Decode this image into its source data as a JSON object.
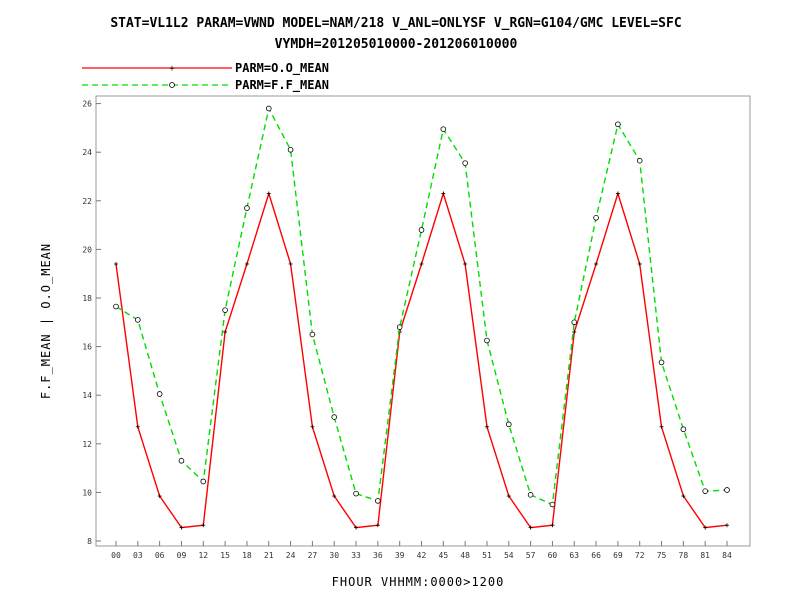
{
  "chart_data": {
    "type": "line",
    "title": "STAT=VL1L2 PARAM=VWND MODEL=NAM/218 V_ANL=ONLYSF V_RGN=G104/GMC LEVEL=SFC",
    "subtitle": "VYMDH=201205010000-201206010000",
    "xlabel": "FHOUR VHHMM:0000>1200",
    "ylabel": "F.F_MEAN | O.O_MEAN",
    "x": [
      "00",
      "03",
      "06",
      "09",
      "12",
      "15",
      "18",
      "21",
      "24",
      "27",
      "30",
      "33",
      "36",
      "39",
      "42",
      "45",
      "48",
      "51",
      "54",
      "57",
      "60",
      "63",
      "66",
      "69",
      "72",
      "75",
      "78",
      "81",
      "84"
    ],
    "ylim": [
      9,
      26.5
    ],
    "yticks": [
      8,
      10,
      12,
      14,
      16,
      18,
      20,
      22,
      24,
      26
    ],
    "ytick_labels": [
      "8",
      "10",
      "12",
      "14",
      "16",
      "18",
      "20",
      "22",
      "24",
      "26"
    ],
    "legend_position": "top-left",
    "grid": false,
    "series": [
      {
        "name": "PARM=O.O_MEAN",
        "color": "#ff0000",
        "style": "solid",
        "marker": "plus",
        "values": [
          19.4,
          12.7,
          9.85,
          8.55,
          8.65,
          16.6,
          19.4,
          22.3,
          19.4,
          12.7,
          9.85,
          8.55,
          8.65,
          16.6,
          19.4,
          22.3,
          19.4,
          12.7,
          9.85,
          8.55,
          8.65,
          16.6,
          19.4,
          22.3,
          19.4,
          12.7,
          9.85,
          8.55,
          8.65
        ]
      },
      {
        "name": "PARM=F.F_MEAN",
        "color": "#00dd00",
        "style": "dashed",
        "marker": "circle",
        "values": [
          17.65,
          17.1,
          14.05,
          11.3,
          10.45,
          17.5,
          21.7,
          25.8,
          24.1,
          16.5,
          13.1,
          9.95,
          9.65,
          16.8,
          20.8,
          24.95,
          23.55,
          16.25,
          12.8,
          9.9,
          9.5,
          17.0,
          21.3,
          25.15,
          23.65,
          15.35,
          12.6,
          10.05,
          10.1
        ]
      }
    ]
  }
}
